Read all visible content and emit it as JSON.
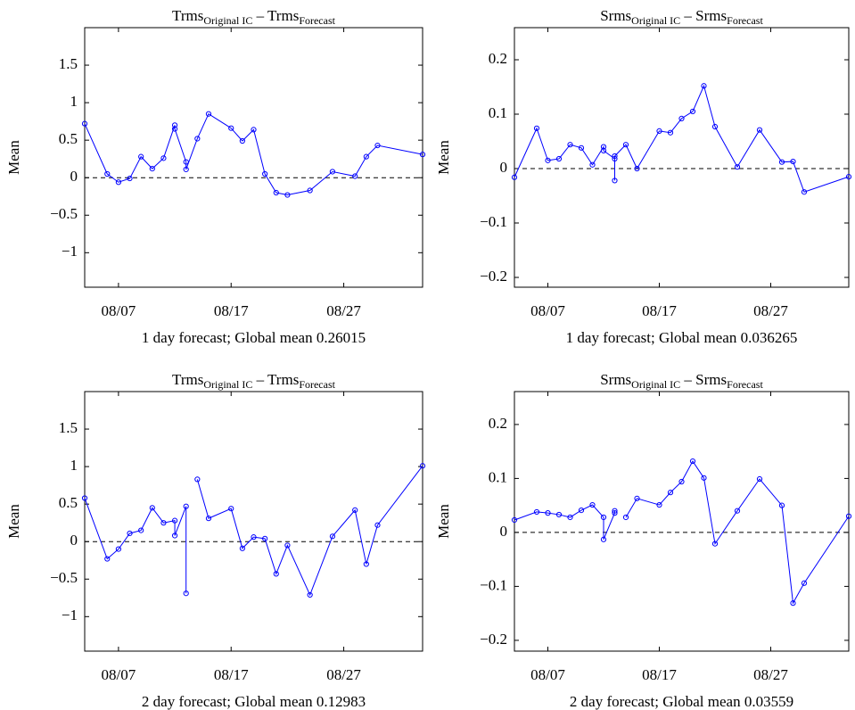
{
  "chart_data": [
    {
      "type": "line",
      "title": [
        "Trms",
        "Original IC",
        " – Trms",
        "Forecast"
      ],
      "xlabel": "1 day forecast; Global mean 0.26015",
      "ylabel": "Mean",
      "x": [
        "08/04",
        "08/06",
        "08/07",
        "08/08",
        "08/09",
        "08/10",
        "08/11",
        "08/12",
        "08/12",
        "08/13",
        "08/13",
        "08/14",
        "08/15",
        "08/17",
        "08/18",
        "08/19",
        "08/20",
        "08/21",
        "08/22",
        "08/24",
        "08/26",
        "08/28",
        "08/29",
        "08/30",
        "09/03"
      ],
      "series": [
        {
          "color": "#0000ff",
          "values": [
            0.72,
            0.05,
            -0.06,
            -0.01,
            0.28,
            0.12,
            0.26,
            0.7,
            0.65,
            0.21,
            0.11,
            0.52,
            0.85,
            0.66,
            0.49,
            0.64,
            0.05,
            -0.2,
            -0.23,
            -0.17,
            0.08,
            0.02,
            0.28,
            0.43,
            0.31
          ]
        }
      ],
      "xlim": [
        "08/04",
        "09/03"
      ],
      "xticks": [
        "08/07",
        "08/17",
        "08/27"
      ],
      "ylim": [
        -1.46,
        2
      ],
      "yticks": [
        {
          "value": -1,
          "label": "−1"
        },
        {
          "value": -0.5,
          "label": "−0.5"
        },
        0,
        0.5,
        1,
        1.5
      ],
      "reference_line": 0
    },
    {
      "type": "line",
      "title": [
        "Srms",
        "Original IC",
        " – Srms",
        "Forecast"
      ],
      "xlabel": "1 day forecast; Global mean 0.036265",
      "ylabel": "Mean",
      "x": [
        "08/04",
        "08/06",
        "08/07",
        "08/08",
        "08/09",
        "08/10",
        "08/11",
        "08/12",
        "08/12",
        "08/13",
        "08/13",
        "08/13",
        "08/14",
        "08/15",
        "08/17",
        "08/18",
        "08/19",
        "08/20",
        "08/21",
        "08/22",
        "08/24",
        "08/26",
        "08/28",
        "08/29",
        "08/30",
        "09/03"
      ],
      "series": [
        {
          "color": "#0000ff",
          "values": [
            -0.016,
            0.074,
            0.015,
            0.018,
            0.044,
            0.038,
            0.007,
            0.04,
            0.033,
            0.018,
            -0.022,
            0.023,
            0.044,
            0.0,
            0.069,
            0.066,
            0.092,
            0.105,
            0.152,
            0.077,
            0.003,
            0.071,
            0.012,
            0.013,
            -0.043,
            -0.015
          ]
        }
      ],
      "xlim": [
        "08/04",
        "09/03"
      ],
      "xticks": [
        "08/07",
        "08/17",
        "08/27"
      ],
      "ylim": [
        -0.218,
        0.259
      ],
      "yticks": [
        {
          "value": -0.2,
          "label": "−0.2"
        },
        {
          "value": -0.1,
          "label": "−0.1"
        },
        0,
        0.1,
        0.2
      ],
      "reference_line": 0
    },
    {
      "type": "line",
      "title": [
        "Trms",
        "Original IC",
        " – Trms",
        "Forecast"
      ],
      "xlabel": "2 day forecast; Global mean 0.12983",
      "ylabel": "Mean",
      "x": [
        "08/04",
        "08/06",
        "08/07",
        "08/08",
        "08/09",
        "08/10",
        "08/11",
        "08/12",
        "08/12",
        "08/13",
        "08/13",
        "08/13",
        "08/14",
        "08/15",
        "08/17",
        "08/18",
        "08/19",
        "08/20",
        "08/21",
        "08/22",
        "08/24",
        "08/26",
        "08/28",
        "08/29",
        "08/30",
        "09/03"
      ],
      "series": [
        {
          "color": "#0000ff",
          "values": [
            0.58,
            -0.23,
            -0.1,
            0.11,
            0.15,
            0.45,
            0.25,
            0.28,
            0.08,
            0.47,
            -0.69,
            null,
            0.83,
            0.31,
            0.44,
            -0.09,
            0.06,
            0.04,
            -0.43,
            -0.05,
            -0.71,
            0.07,
            0.42,
            -0.3,
            0.22,
            1.01
          ]
        }
      ],
      "xlim": [
        "08/04",
        "09/03"
      ],
      "xticks": [
        "08/07",
        "08/17",
        "08/27"
      ],
      "ylim": [
        -1.46,
        2
      ],
      "yticks": [
        {
          "value": -1,
          "label": "−1"
        },
        {
          "value": -0.5,
          "label": "−0.5"
        },
        0,
        0.5,
        1,
        1.5
      ],
      "reference_line": 0
    },
    {
      "type": "line",
      "title": [
        "Srms",
        "Original IC",
        " – Srms",
        "Forecast"
      ],
      "xlabel": "2 day forecast; Global mean 0.03559",
      "ylabel": "Mean",
      "x": [
        "08/04",
        "08/06",
        "08/07",
        "08/08",
        "08/09",
        "08/10",
        "08/11",
        "08/12",
        "08/12",
        "08/13",
        "08/13",
        "08/13",
        "08/14",
        "08/15",
        "08/17",
        "08/18",
        "08/19",
        "08/20",
        "08/21",
        "08/22",
        "08/24",
        "08/26",
        "08/28",
        "08/29",
        "08/30",
        "09/03"
      ],
      "series": [
        {
          "color": "#0000ff",
          "values": [
            0.023,
            0.038,
            0.036,
            0.033,
            0.028,
            0.041,
            0.051,
            0.028,
            -0.013,
            0.036,
            0.04,
            null,
            0.028,
            0.063,
            0.051,
            0.074,
            0.094,
            0.132,
            0.101,
            -0.021,
            0.04,
            0.099,
            0.05,
            -0.131,
            -0.094,
            0.03
          ]
        }
      ],
      "xlim": [
        "08/04",
        "09/03"
      ],
      "xticks": [
        "08/07",
        "08/17",
        "08/27"
      ],
      "ylim": [
        -0.22,
        0.261
      ],
      "yticks": [
        {
          "value": -0.2,
          "label": "−0.2"
        },
        {
          "value": -0.1,
          "label": "−0.1"
        },
        0,
        0.1,
        0.2
      ],
      "reference_line": 0
    }
  ]
}
